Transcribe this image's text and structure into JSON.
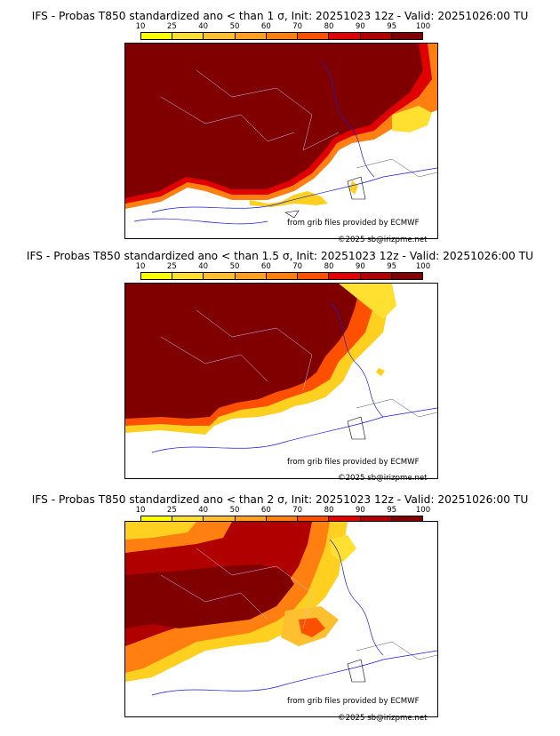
{
  "colorbar": {
    "ticks": [
      "10",
      "25",
      "40",
      "50",
      "60",
      "70",
      "80",
      "90",
      "95",
      "100"
    ],
    "colors": [
      "#ffff00",
      "#ffe030",
      "#ffc030",
      "#ffa020",
      "#ff8010",
      "#ff5000",
      "#e00000",
      "#b00000",
      "#800000"
    ]
  },
  "panels": [
    {
      "title": "IFS - Probas T850  standardized ano < than 1 σ, Init: 20251023 12z - Valid: 20251026:00 TU",
      "credit_src": "from grib files provided by ECMWF",
      "credit_copy": "©2025 sb@irizpme.net"
    },
    {
      "title": "IFS - Probas T850  standardized ano < than 1.5 σ, Init: 20251023 12z - Valid: 20251026:00 TU",
      "credit_src": "from grib files provided by ECMWF",
      "credit_copy": "©2025 sb@irizpme.net"
    },
    {
      "title": "IFS - Probas T850  standardized ano < than 2 σ, Init: 20251023 12z - Valid: 20251026:00 TU",
      "credit_src": "from grib files provided by ECMWF",
      "credit_copy": "©2025 sb@irizpme.net"
    }
  ]
}
